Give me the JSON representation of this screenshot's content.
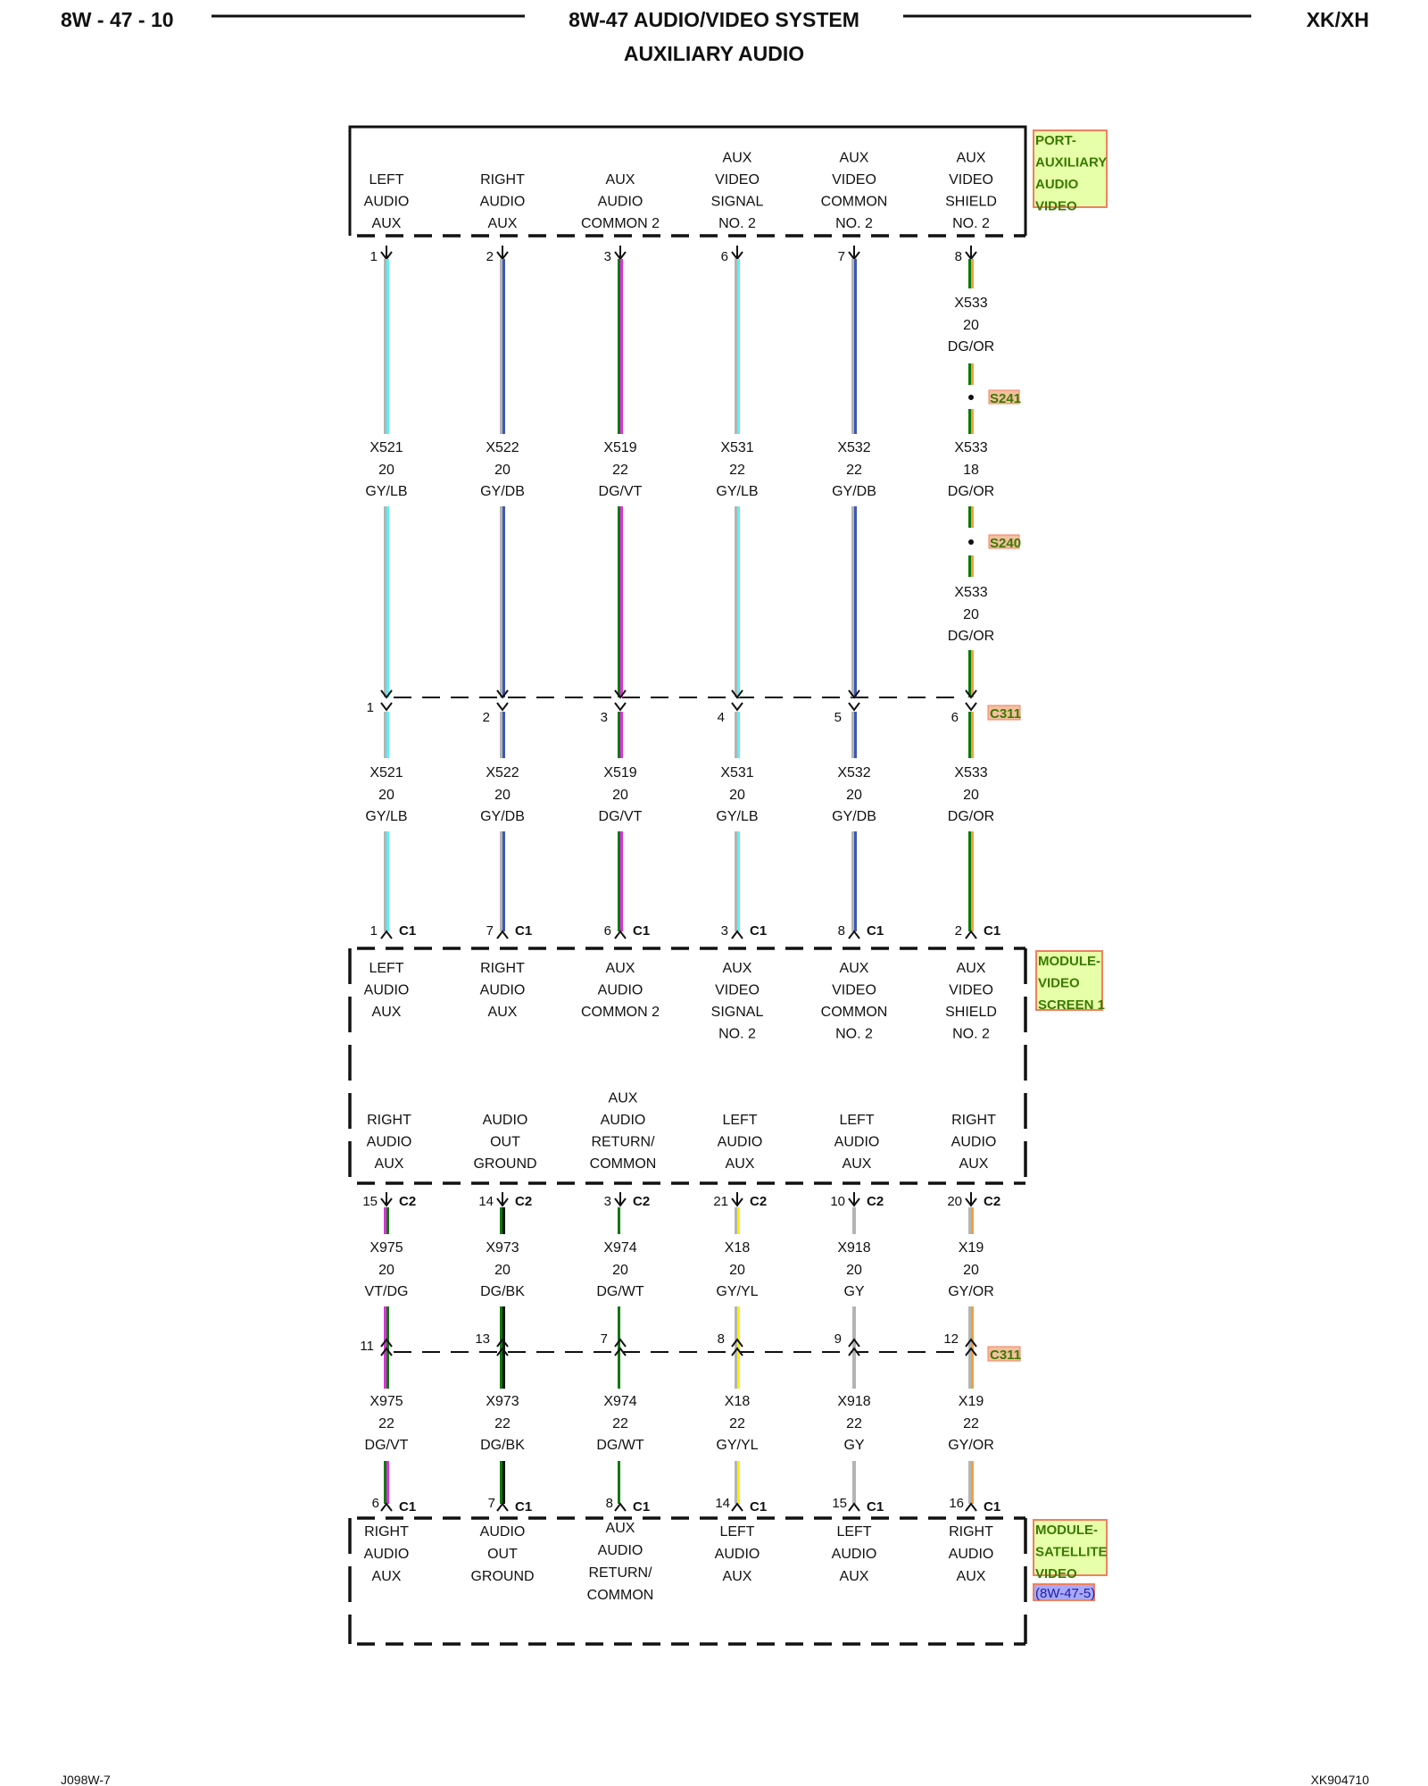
{
  "header": {
    "page_id": "8W - 47 - 10",
    "title": "8W-47 AUDIO/VIDEO SYSTEM",
    "subtitle": "AUXILIARY AUDIO",
    "model": "XK/XH"
  },
  "footer": {
    "left": "J098W-7",
    "right": "XK904710"
  },
  "wire_color_codes": {
    "GY": "#b4b4b4",
    "LB": "#5ef0f5",
    "DB": "#3f58b0",
    "DG": "#0a7a0a",
    "VT": "#e030e0",
    "OR": "#f0a040",
    "YL": "#fff000",
    "BK": "#111111",
    "WT": "#ffffff"
  },
  "components": {
    "port": {
      "name_lines": [
        "PORT-",
        "AUXILIARY",
        "AUDIO",
        "VIDEO"
      ]
    },
    "screen": {
      "name_lines": [
        "MODULE-",
        "VIDEO",
        "SCREEN 1"
      ],
      "connector_top": "C1",
      "connector_bottom": "C2"
    },
    "satellite": {
      "name_lines": [
        "MODULE-",
        "SATELLITE",
        "VIDEO"
      ],
      "reference": "(8W-47-5)",
      "connector": "C1"
    }
  },
  "inline_connector": "C311",
  "splices": [
    "S241",
    "S240"
  ],
  "columns": [
    {
      "port_label": [
        "LEFT",
        "AUDIO",
        "AUX"
      ],
      "port_pin": "1",
      "wire_a": {
        "circuit": "X521",
        "gauge": "20",
        "color": "GY/LB"
      },
      "c311_pin_a": "1",
      "wire_b": {
        "circuit": "X521",
        "gauge": "20",
        "color": "GY/LB"
      },
      "screen_c1_pin": "1",
      "screen_label_top": [
        "LEFT",
        "AUDIO",
        "AUX"
      ],
      "screen_label_bottom": [
        "RIGHT",
        "AUDIO",
        "AUX"
      ],
      "screen_c2_pin": "15",
      "wire_c": {
        "circuit": "X975",
        "gauge": "20",
        "color": "VT/DG"
      },
      "c311_pin_b": "11",
      "wire_d": {
        "circuit": "X975",
        "gauge": "22",
        "color": "DG/VT"
      },
      "sat_pin": "6",
      "sat_label": [
        "RIGHT",
        "AUDIO",
        "AUX"
      ]
    },
    {
      "port_label": [
        "RIGHT",
        "AUDIO",
        "AUX"
      ],
      "port_pin": "2",
      "wire_a": {
        "circuit": "X522",
        "gauge": "20",
        "color": "GY/DB"
      },
      "c311_pin_a": "2",
      "wire_b": {
        "circuit": "X522",
        "gauge": "20",
        "color": "GY/DB"
      },
      "screen_c1_pin": "7",
      "screen_label_top": [
        "RIGHT",
        "AUDIO",
        "AUX"
      ],
      "screen_label_bottom": [
        "AUDIO",
        "OUT",
        "GROUND"
      ],
      "screen_c2_pin": "14",
      "wire_c": {
        "circuit": "X973",
        "gauge": "20",
        "color": "DG/BK"
      },
      "c311_pin_b": "13",
      "wire_d": {
        "circuit": "X973",
        "gauge": "22",
        "color": "DG/BK"
      },
      "sat_pin": "7",
      "sat_label": [
        "AUDIO",
        "OUT",
        "GROUND"
      ]
    },
    {
      "port_label": [
        "AUX",
        "AUDIO",
        "COMMON 2"
      ],
      "port_pin": "3",
      "wire_a": {
        "circuit": "X519",
        "gauge": "22",
        "color": "DG/VT"
      },
      "c311_pin_a": "3",
      "wire_b": {
        "circuit": "X519",
        "gauge": "20",
        "color": "DG/VT"
      },
      "screen_c1_pin": "6",
      "screen_label_top": [
        "AUX",
        "AUDIO",
        "COMMON 2"
      ],
      "screen_label_bottom": [
        "AUX",
        "AUDIO",
        "RETURN/",
        "COMMON"
      ],
      "screen_c2_pin": "3",
      "wire_c": {
        "circuit": "X974",
        "gauge": "20",
        "color": "DG/WT"
      },
      "c311_pin_b": "7",
      "wire_d": {
        "circuit": "X974",
        "gauge": "22",
        "color": "DG/WT"
      },
      "sat_pin": "8",
      "sat_label": [
        "AUX",
        "AUDIO",
        "RETURN/",
        "COMMON"
      ]
    },
    {
      "port_label": [
        "AUX",
        "VIDEO",
        "SIGNAL",
        "NO. 2"
      ],
      "port_pin": "6",
      "wire_a": {
        "circuit": "X531",
        "gauge": "22",
        "color": "GY/LB"
      },
      "c311_pin_a": "4",
      "wire_b": {
        "circuit": "X531",
        "gauge": "20",
        "color": "GY/LB"
      },
      "screen_c1_pin": "3",
      "screen_label_top": [
        "AUX",
        "VIDEO",
        "SIGNAL",
        "NO. 2"
      ],
      "screen_label_bottom": [
        "LEFT",
        "AUDIO",
        "AUX"
      ],
      "screen_c2_pin": "21",
      "wire_c": {
        "circuit": "X18",
        "gauge": "20",
        "color": "GY/YL"
      },
      "c311_pin_b": "8",
      "wire_d": {
        "circuit": "X18",
        "gauge": "22",
        "color": "GY/YL"
      },
      "sat_pin": "14",
      "sat_label": [
        "LEFT",
        "AUDIO",
        "AUX"
      ]
    },
    {
      "port_label": [
        "AUX",
        "VIDEO",
        "COMMON",
        "NO. 2"
      ],
      "port_pin": "7",
      "wire_a": {
        "circuit": "X532",
        "gauge": "22",
        "color": "GY/DB"
      },
      "c311_pin_a": "5",
      "wire_b": {
        "circuit": "X532",
        "gauge": "20",
        "color": "GY/DB"
      },
      "screen_c1_pin": "8",
      "screen_label_top": [
        "AUX",
        "VIDEO",
        "COMMON",
        "NO. 2"
      ],
      "screen_label_bottom": [
        "LEFT",
        "AUDIO",
        "AUX"
      ],
      "screen_c2_pin": "10",
      "wire_c": {
        "circuit": "X918",
        "gauge": "20",
        "color": "GY"
      },
      "c311_pin_b": "9",
      "wire_d": {
        "circuit": "X918",
        "gauge": "22",
        "color": "GY"
      },
      "sat_pin": "15",
      "sat_label": [
        "LEFT",
        "AUDIO",
        "AUX"
      ]
    },
    {
      "port_label": [
        "AUX",
        "VIDEO",
        "SHIELD",
        "NO. 2"
      ],
      "port_pin": "8",
      "wire_a0": {
        "circuit": "X533",
        "gauge": "20",
        "color": "DG/OR"
      },
      "wire_a": {
        "circuit": "X533",
        "gauge": "18",
        "color": "DG/OR"
      },
      "wire_a2": {
        "circuit": "X533",
        "gauge": "20",
        "color": "DG/OR"
      },
      "c311_pin_a": "6",
      "wire_b": {
        "circuit": "X533",
        "gauge": "20",
        "color": "DG/OR"
      },
      "screen_c1_pin": "2",
      "screen_label_top": [
        "AUX",
        "VIDEO",
        "SHIELD",
        "NO. 2"
      ],
      "screen_label_bottom": [
        "RIGHT",
        "AUDIO",
        "AUX"
      ],
      "screen_c2_pin": "20",
      "wire_c": {
        "circuit": "X19",
        "gauge": "20",
        "color": "GY/OR"
      },
      "c311_pin_b": "12",
      "wire_d": {
        "circuit": "X19",
        "gauge": "22",
        "color": "GY/OR"
      },
      "sat_pin": "16",
      "sat_label": [
        "RIGHT",
        "AUDIO",
        "AUX"
      ]
    }
  ]
}
